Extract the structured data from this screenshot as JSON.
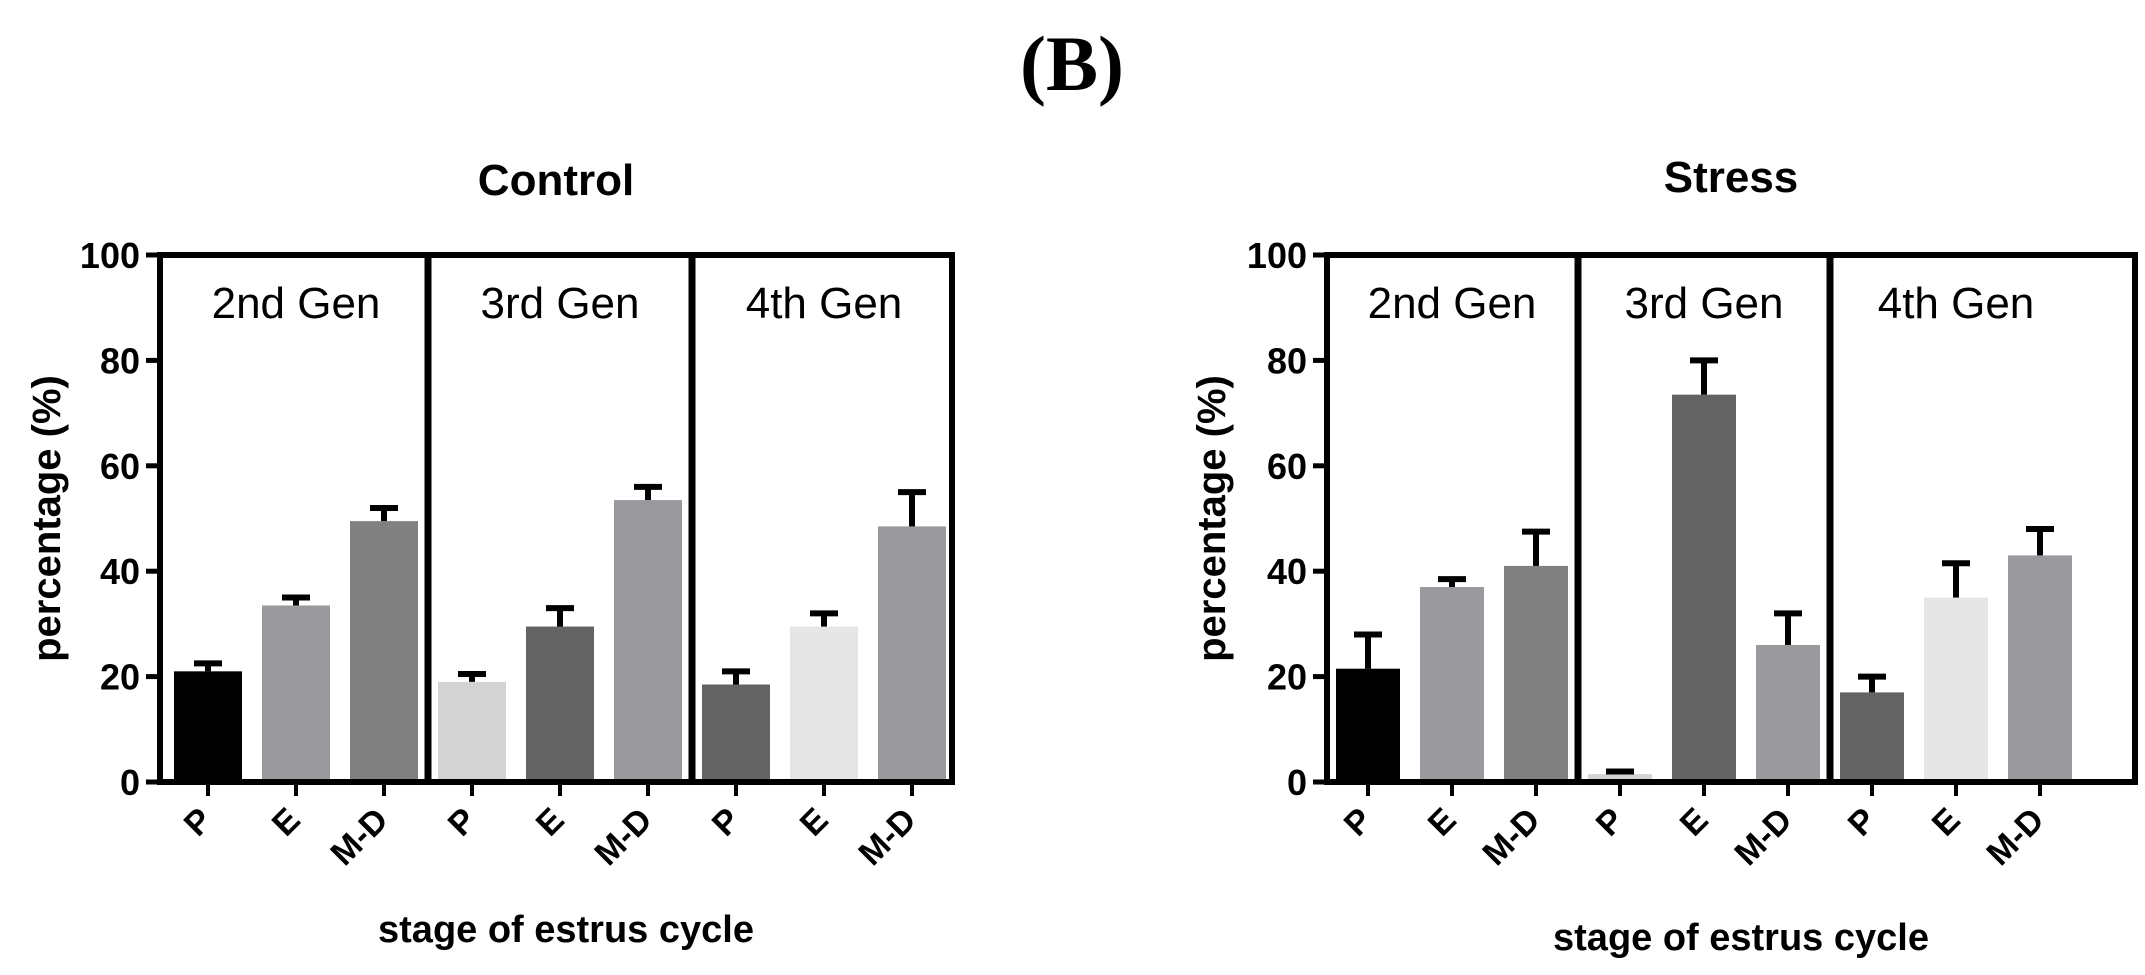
{
  "figure_label": "(B)",
  "chart_data": [
    {
      "type": "bar",
      "title": "Control",
      "xlabel": "stage of estrus cycle",
      "ylabel": "percentage (%)",
      "ylim": [
        0,
        100
      ],
      "yticks": [
        0,
        20,
        40,
        60,
        80,
        100
      ],
      "groups": [
        {
          "label": "2nd Gen",
          "bars": [
            {
              "category": "P",
              "value": 21,
              "error": 1.5,
              "color": "#000000"
            },
            {
              "category": "E",
              "value": 33.5,
              "error": 1.5,
              "color": "#9a9a9e"
            },
            {
              "category": "M-D",
              "value": 49.5,
              "error": 2.5,
              "color": "#808080"
            }
          ]
        },
        {
          "label": "3rd Gen",
          "bars": [
            {
              "category": "P",
              "value": 19,
              "error": 1.5,
              "color": "#d4d4d4"
            },
            {
              "category": "E",
              "value": 29.5,
              "error": 3.5,
              "color": "#636363"
            },
            {
              "category": "M-D",
              "value": 53.5,
              "error": 2.5,
              "color": "#9a9a9e"
            }
          ]
        },
        {
          "label": "4th Gen",
          "bars": [
            {
              "category": "P",
              "value": 18.5,
              "error": 2.5,
              "color": "#636363"
            },
            {
              "category": "E",
              "value": 29.5,
              "error": 2.5,
              "color": "#e6e6e6"
            },
            {
              "category": "M-D",
              "value": 48.5,
              "error": 6.5,
              "color": "#9a9a9e"
            }
          ]
        }
      ]
    },
    {
      "type": "bar",
      "title": "Stress",
      "xlabel": "stage of estrus cycle",
      "ylabel": "percentage (%)",
      "ylim": [
        0,
        100
      ],
      "yticks": [
        0,
        20,
        40,
        60,
        80,
        100
      ],
      "groups": [
        {
          "label": "2nd Gen",
          "bars": [
            {
              "category": "P",
              "value": 21.5,
              "error": 6.5,
              "color": "#000000"
            },
            {
              "category": "E",
              "value": 37,
              "error": 1.5,
              "color": "#9a9a9e"
            },
            {
              "category": "M-D",
              "value": 41,
              "error": 6.5,
              "color": "#808080"
            }
          ]
        },
        {
          "label": "3rd Gen",
          "bars": [
            {
              "category": "P",
              "value": 1.5,
              "error": 0.5,
              "color": "#d4d4d4"
            },
            {
              "category": "E",
              "value": 73.5,
              "error": 6.5,
              "color": "#636363"
            },
            {
              "category": "M-D",
              "value": 26,
              "error": 6,
              "color": "#9a9a9e"
            }
          ]
        },
        {
          "label": "4th Gen",
          "bars": [
            {
              "category": "P",
              "value": 17,
              "error": 3,
              "color": "#636363"
            },
            {
              "category": "E",
              "value": 35,
              "error": 6.5,
              "color": "#e6e6e6"
            },
            {
              "category": "M-D",
              "value": 43,
              "error": 5,
              "color": "#9a9a9e"
            }
          ]
        }
      ]
    }
  ]
}
